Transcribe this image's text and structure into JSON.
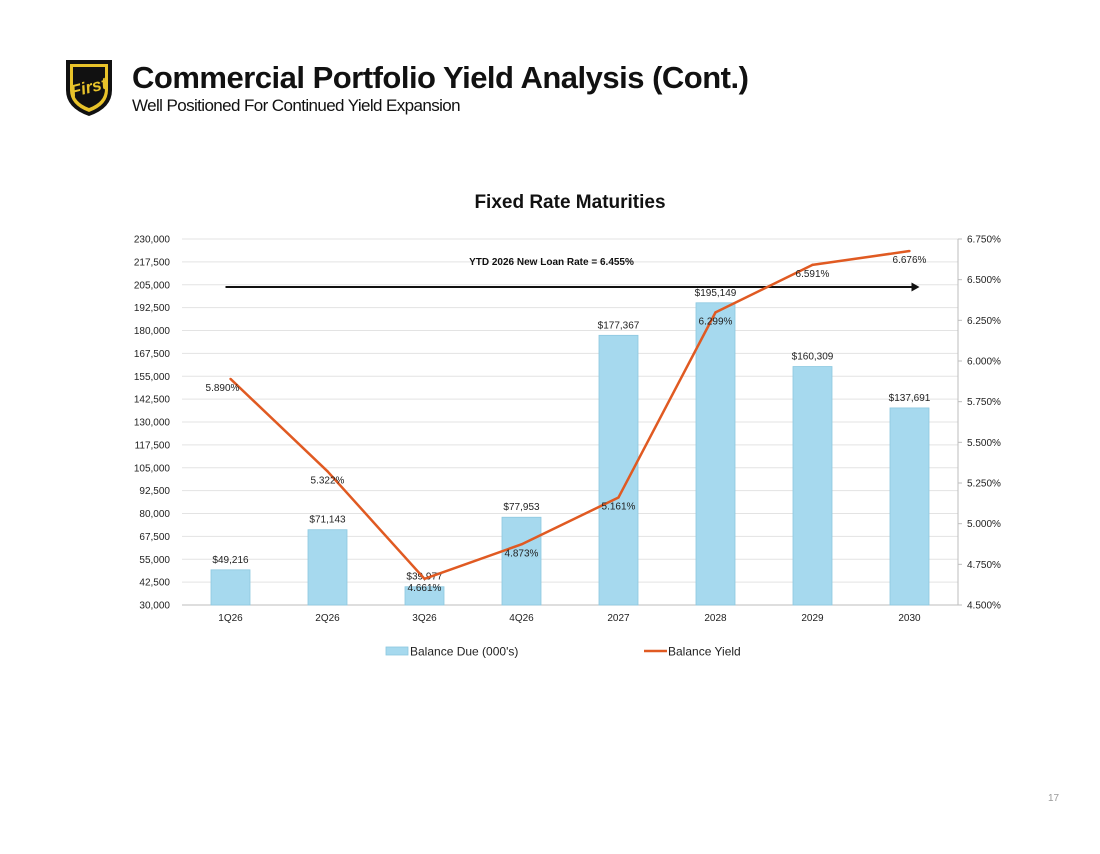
{
  "header": {
    "title": "Commercial Portfolio Yield Analysis (Cont.)",
    "subtitle": "Well Positioned For Continued Yield Expansion",
    "logo_text": "First"
  },
  "page_number": "17",
  "colors": {
    "bar_fill": "#a6d9ee",
    "bar_stroke": "#8cc8e0",
    "line": "#e05a22",
    "arrow": "#111111",
    "grid": "#e3e3e3",
    "logo_gold": "#e8c32a",
    "logo_black": "#111111"
  },
  "chart_data": {
    "type": "bar",
    "title": "Fixed Rate Maturities",
    "categories": [
      "1Q26",
      "2Q26",
      "3Q26",
      "4Q26",
      "2027",
      "2028",
      "2029",
      "2030"
    ],
    "series": [
      {
        "name": "Balance Due (000's)",
        "type": "bar",
        "axis": "left",
        "values": [
          49216,
          71143,
          39977,
          77953,
          177367,
          195149,
          160309,
          137691
        ],
        "labels": [
          "$49,216",
          "$71,143",
          "$39,977",
          "$77,953",
          "$177,367",
          "$195,149",
          "$160,309",
          "$137,691"
        ]
      },
      {
        "name": "Balance Yield",
        "type": "line",
        "axis": "right",
        "values": [
          5.89,
          5.322,
          4.661,
          4.873,
          5.161,
          6.299,
          6.591,
          6.676
        ],
        "labels": [
          "5.890%",
          "5.322%",
          "4.661%",
          "4.873%",
          "5.161%",
          "6.299%",
          "6.591%",
          "6.676%"
        ]
      }
    ],
    "y_left": {
      "min": 30000,
      "max": 230000,
      "ticks": [
        30000,
        42500,
        55000,
        67500,
        80000,
        92500,
        105000,
        117500,
        130000,
        142500,
        155000,
        167500,
        180000,
        192500,
        205000,
        217500,
        230000
      ],
      "tick_labels": [
        "30,000",
        "42,500",
        "55,000",
        "67,500",
        "80,000",
        "92,500",
        "105,000",
        "117,500",
        "130,000",
        "142,500",
        "155,000",
        "167,500",
        "180,000",
        "192,500",
        "205,000",
        "217,500",
        "230,000"
      ]
    },
    "y_right": {
      "min": 4.5,
      "max": 6.75,
      "ticks": [
        4.5,
        4.75,
        5.0,
        5.25,
        5.5,
        5.75,
        6.0,
        6.25,
        6.5,
        6.75
      ],
      "tick_labels": [
        "4.500%",
        "4.750%",
        "5.000%",
        "5.250%",
        "5.500%",
        "5.750%",
        "6.000%",
        "6.250%",
        "6.500%",
        "6.750%"
      ]
    },
    "annotation": {
      "text": "YTD 2026 New Loan Rate = 6.455%",
      "arrow_from": "1Q26",
      "arrow_to": "2030",
      "arrow_value": 6.455
    },
    "grid": true,
    "legend": "bottom"
  }
}
